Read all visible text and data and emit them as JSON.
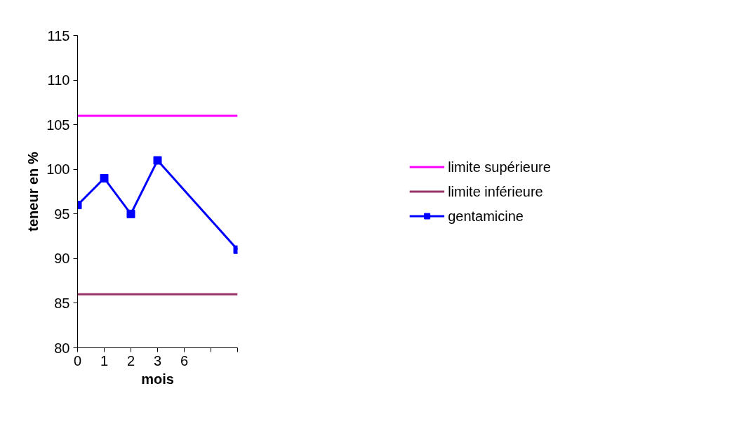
{
  "chart_data": {
    "type": "line",
    "xlabel": "mois",
    "ylabel": "teneur en %",
    "categories": [
      "0",
      "1",
      "2",
      "3",
      "6",
      null,
      null
    ],
    "ylim": [
      80,
      115
    ],
    "yticks": [
      80,
      85,
      90,
      95,
      100,
      105,
      110,
      115
    ],
    "series": [
      {
        "name": "limite supérieure",
        "color": "#ff00ff",
        "values": [
          106,
          106,
          106,
          106,
          106,
          106,
          106
        ],
        "marker": "none"
      },
      {
        "name": "limite inférieure",
        "color": "#993366",
        "values": [
          86,
          86,
          86,
          86,
          86,
          86,
          86
        ],
        "marker": "none"
      },
      {
        "name": "gentamicine",
        "color": "#0000ff",
        "values": [
          96,
          99,
          95,
          101,
          null,
          null,
          91
        ],
        "marker": "square"
      }
    ],
    "legend": "right",
    "grid": false,
    "line_style": "solid"
  }
}
